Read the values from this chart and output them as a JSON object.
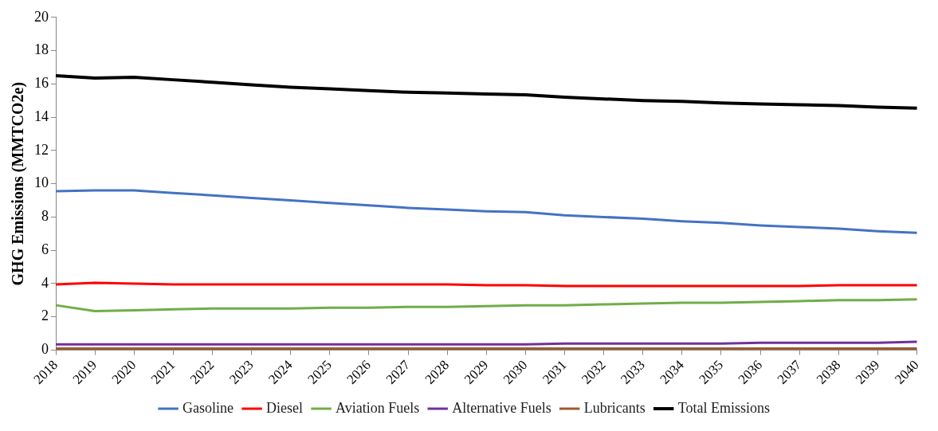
{
  "chart_data": {
    "type": "line",
    "ylabel": "GHG Emissions (MMTCO2e)",
    "categories": [
      "2018",
      "2019",
      "2020",
      "2021",
      "2022",
      "2023",
      "2024",
      "2025",
      "2026",
      "2027",
      "2028",
      "2029",
      "2030",
      "2031",
      "2032",
      "2033",
      "2034",
      "2035",
      "2036",
      "2037",
      "2038",
      "2039",
      "2040"
    ],
    "series": [
      {
        "name": "Gasoline",
        "color": "#4472c4",
        "values": [
          9.55,
          9.6,
          9.6,
          9.45,
          9.3,
          9.15,
          9.0,
          8.85,
          8.7,
          8.55,
          8.45,
          8.35,
          8.3,
          8.1,
          8.0,
          7.9,
          7.75,
          7.65,
          7.5,
          7.4,
          7.3,
          7.15,
          7.05
        ]
      },
      {
        "name": "Diesel",
        "color": "#ff0000",
        "values": [
          3.95,
          4.05,
          4.0,
          3.95,
          3.95,
          3.95,
          3.95,
          3.95,
          3.95,
          3.95,
          3.95,
          3.9,
          3.9,
          3.85,
          3.85,
          3.85,
          3.85,
          3.85,
          3.85,
          3.85,
          3.9,
          3.9,
          3.9
        ]
      },
      {
        "name": "Aviation Fuels",
        "color": "#70ad47",
        "values": [
          2.7,
          2.35,
          2.4,
          2.45,
          2.5,
          2.5,
          2.5,
          2.55,
          2.55,
          2.6,
          2.6,
          2.65,
          2.7,
          2.7,
          2.75,
          2.8,
          2.85,
          2.85,
          2.9,
          2.95,
          3.0,
          3.0,
          3.05
        ]
      },
      {
        "name": "Alternative Fuels",
        "color": "#7030a0",
        "values": [
          0.35,
          0.35,
          0.35,
          0.35,
          0.35,
          0.35,
          0.35,
          0.35,
          0.35,
          0.35,
          0.35,
          0.35,
          0.35,
          0.4,
          0.4,
          0.4,
          0.4,
          0.4,
          0.45,
          0.45,
          0.45,
          0.45,
          0.5
        ]
      },
      {
        "name": "Lubricants",
        "color": "#9c5b2e",
        "values": [
          0.1,
          0.1,
          0.1,
          0.1,
          0.1,
          0.1,
          0.1,
          0.1,
          0.1,
          0.1,
          0.1,
          0.1,
          0.1,
          0.1,
          0.1,
          0.1,
          0.1,
          0.1,
          0.1,
          0.1,
          0.1,
          0.1,
          0.1
        ]
      },
      {
        "name": "Total Emissions",
        "color": "#000000",
        "values": [
          16.5,
          16.35,
          16.4,
          16.25,
          16.1,
          15.95,
          15.8,
          15.7,
          15.6,
          15.5,
          15.45,
          15.4,
          15.35,
          15.2,
          15.1,
          15.0,
          14.95,
          14.85,
          14.8,
          14.75,
          14.7,
          14.6,
          14.55
        ]
      }
    ],
    "ylim": [
      0,
      20
    ],
    "yticks": [
      0,
      2,
      4,
      6,
      8,
      10,
      12,
      14,
      16,
      18,
      20
    ],
    "grid": false,
    "legend": "bottom",
    "marker": "none",
    "line_style": "solid"
  }
}
